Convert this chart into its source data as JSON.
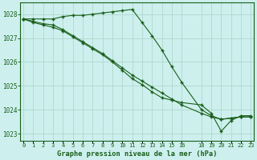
{
  "title": "Graphe pression niveau de la mer (hPa)",
  "bg_color": "#cdf0ee",
  "grid_color": "#b0d8cc",
  "line_color": "#1a5e1a",
  "x_hours": [
    0,
    1,
    2,
    3,
    4,
    5,
    6,
    7,
    8,
    9,
    10,
    11,
    12,
    13,
    14,
    15,
    16,
    18,
    19,
    20,
    21,
    22,
    23
  ],
  "series1": [
    1027.8,
    1027.8,
    1027.8,
    1027.8,
    1027.9,
    1027.95,
    1027.95,
    1028.0,
    1028.05,
    1028.1,
    1028.15,
    1028.2,
    1027.65,
    1027.1,
    1026.5,
    1025.8,
    1025.15,
    1024.0,
    1023.75,
    1023.6,
    1023.65,
    1023.7,
    1023.7
  ],
  "series2": [
    1027.8,
    1027.7,
    1027.6,
    1027.55,
    1027.35,
    1027.1,
    1026.85,
    1026.6,
    1026.35,
    1026.05,
    1025.75,
    1025.45,
    1025.2,
    1024.95,
    1024.7,
    1024.45,
    1024.2,
    1023.85,
    1023.7,
    1023.6,
    1023.65,
    1023.7,
    1023.7
  ],
  "series3": [
    1027.8,
    1027.65,
    1027.55,
    1027.45,
    1027.3,
    1027.05,
    1026.8,
    1026.55,
    1026.3,
    1026.0,
    1025.65,
    1025.3,
    1025.05,
    1024.75,
    1024.5,
    1024.4,
    1024.3,
    1024.2,
    1023.85,
    1023.1,
    1023.55,
    1023.75,
    1023.75
  ],
  "ylim": [
    1022.7,
    1028.5
  ],
  "yticks": [
    1023,
    1024,
    1025,
    1026,
    1027,
    1028
  ],
  "xticks": [
    0,
    1,
    2,
    3,
    4,
    5,
    6,
    7,
    8,
    9,
    10,
    11,
    12,
    13,
    14,
    15,
    16,
    18,
    19,
    20,
    21,
    22,
    23
  ],
  "xlim": [
    -0.3,
    23.3
  ]
}
